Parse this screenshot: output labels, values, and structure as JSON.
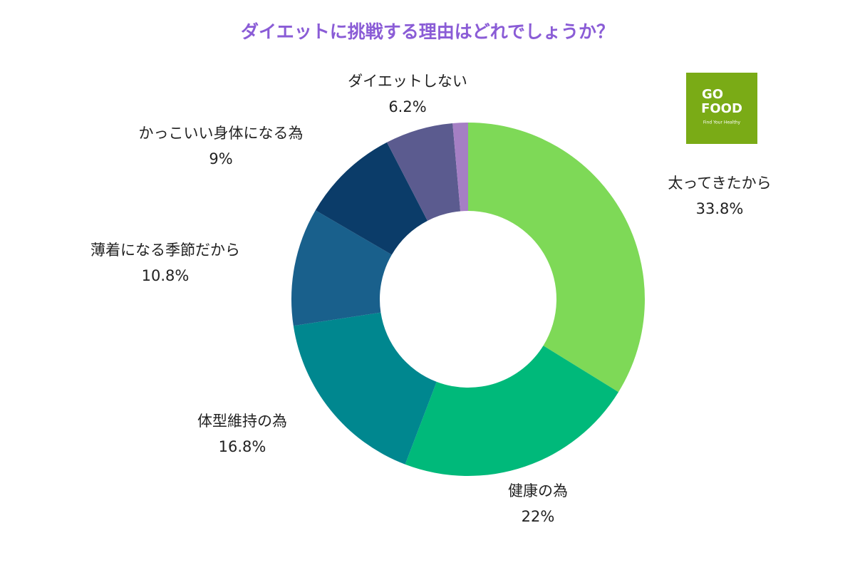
{
  "chart_data": {
    "type": "donut",
    "title": "ダイエットに挑戦する理由はどれでしょうか？",
    "categories": [
      "太ってきたから",
      "健康の為",
      "体型維持の為",
      "薄着になる季節だから",
      "かっこいい身体になる為",
      "ダイエットしない",
      null
    ],
    "values": [
      33.8,
      22,
      16.8,
      10.8,
      9,
      6.2,
      1.4
    ],
    "value_labels": [
      "33.8%",
      "22%",
      "16.8%",
      "10.8%",
      "9%",
      "6.2%",
      null
    ],
    "colors": [
      "#7ed957",
      "#00b97a",
      "#00878f",
      "#19608c",
      "#0b3c69",
      "#5b5b8f",
      "#a57fc4"
    ]
  },
  "logo": {
    "line1": "GO",
    "line2": "FOOD",
    "tagline": "Find Your Healthy"
  }
}
